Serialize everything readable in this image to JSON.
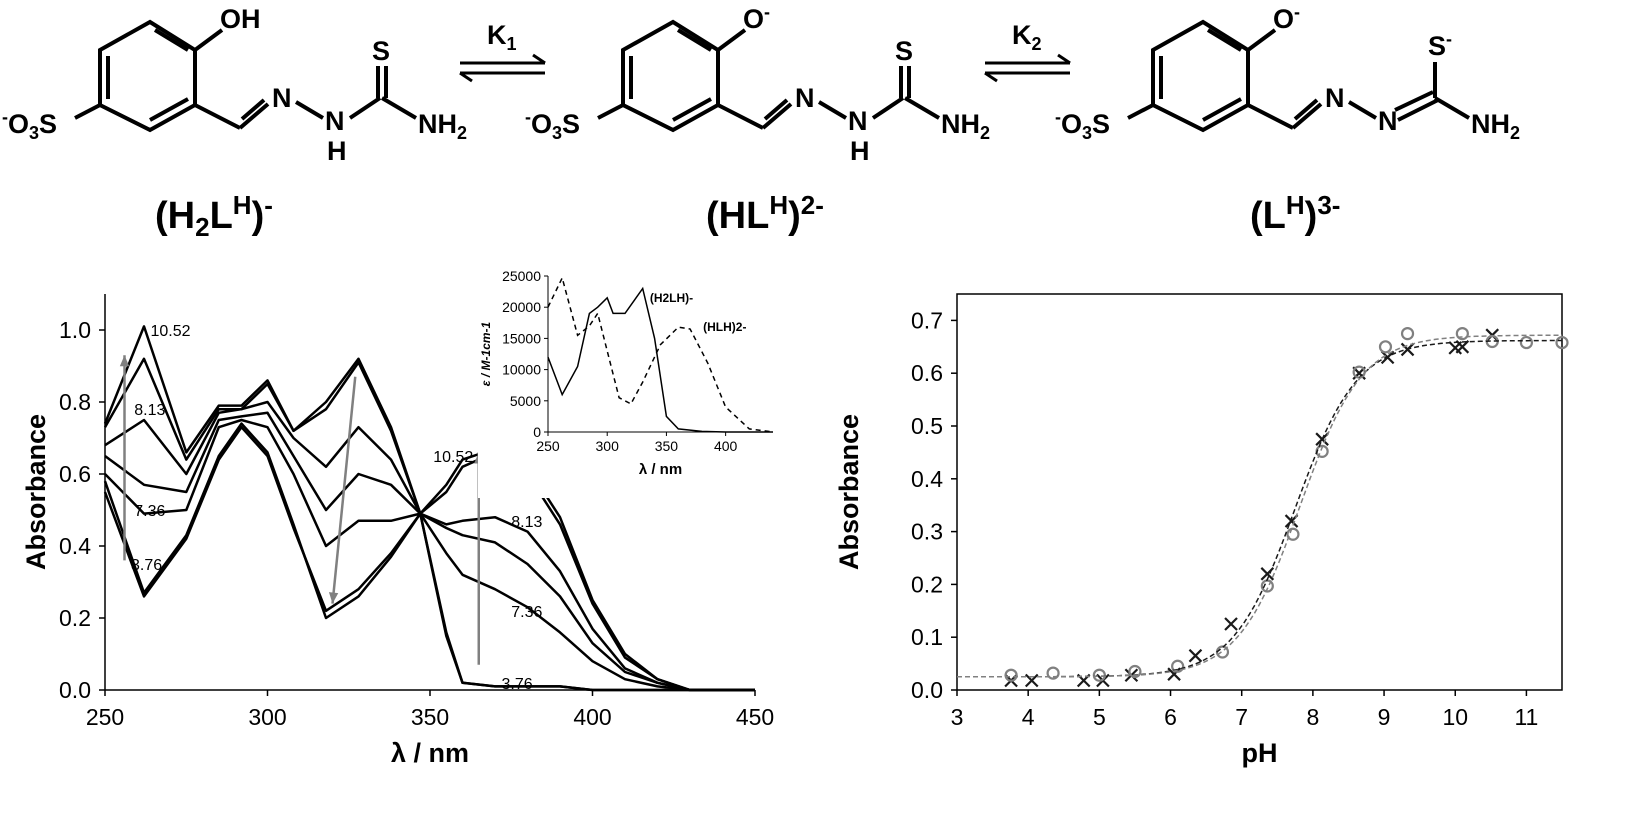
{
  "scheme": {
    "species": [
      {
        "label": "(H2L",
        "sup": "H",
        "close": ")",
        "charge": "-",
        "subscript": "2"
      },
      {
        "label": "(HL",
        "sup": "H",
        "close": ")",
        "charge": "2-"
      },
      {
        "label": "(L",
        "sup": "H",
        "close": ")",
        "charge": "3-"
      }
    ],
    "equilibria": [
      {
        "label": "K",
        "sub": "1"
      },
      {
        "label": "K",
        "sub": "2"
      }
    ],
    "atoms": {
      "oh": "OH",
      "o_minus": "O",
      "s": "S",
      "s_minus": "S",
      "n": "N",
      "nh": "N",
      "h": "H",
      "nh2": "NH",
      "nh2_sub": "2",
      "so3_pre": "-",
      "so3": "O",
      "so3_sub": "3",
      "so3_s": "S",
      "minus": "-"
    }
  },
  "chart_data": [
    {
      "id": "uv-vis-spectra",
      "type": "line",
      "xlabel": "λ / nm",
      "ylabel": "Absorbance",
      "xlim": [
        250,
        450
      ],
      "ylim": [
        0,
        1.1
      ],
      "xticks": [
        250,
        300,
        350,
        400,
        450
      ],
      "yticks": [
        "0.0",
        "0.2",
        "0.4",
        "0.6",
        "0.8",
        "1.0"
      ],
      "grid": false,
      "series": [
        {
          "name": "3.76",
          "x": [
            250,
            262,
            275,
            285,
            292,
            300,
            308,
            318,
            328,
            338,
            347,
            355,
            360,
            370,
            380,
            390,
            400,
            410,
            420,
            430,
            440,
            450
          ],
          "y": [
            0.55,
            0.26,
            0.42,
            0.64,
            0.73,
            0.65,
            0.45,
            0.22,
            0.28,
            0.38,
            0.49,
            0.15,
            0.02,
            0.01,
            0.01,
            0.01,
            0.0,
            0.0,
            0.0,
            0.0,
            0.0,
            0.0
          ]
        },
        {
          "name": "",
          "x": [
            250,
            262,
            275,
            285,
            292,
            300,
            308,
            318,
            328,
            338,
            347,
            355,
            360,
            370,
            380,
            390,
            400,
            410,
            420,
            430,
            440,
            450
          ],
          "y": [
            0.58,
            0.27,
            0.43,
            0.65,
            0.74,
            0.66,
            0.46,
            0.2,
            0.26,
            0.37,
            0.49,
            0.16,
            0.02,
            0.01,
            0.01,
            0.01,
            0.0,
            0.0,
            0.0,
            0.0,
            0.0,
            0.0
          ]
        },
        {
          "name": "7.36",
          "x": [
            250,
            262,
            275,
            285,
            292,
            300,
            308,
            318,
            328,
            338,
            347,
            355,
            360,
            370,
            380,
            390,
            400,
            410,
            420,
            430,
            440,
            450
          ],
          "y": [
            0.6,
            0.49,
            0.5,
            0.73,
            0.75,
            0.73,
            0.6,
            0.4,
            0.47,
            0.47,
            0.49,
            0.38,
            0.32,
            0.28,
            0.23,
            0.16,
            0.08,
            0.03,
            0.01,
            0.0,
            0.0,
            0.0
          ]
        },
        {
          "name": "",
          "x": [
            250,
            262,
            275,
            285,
            292,
            300,
            308,
            318,
            328,
            338,
            347,
            355,
            360,
            370,
            380,
            390,
            400,
            410,
            420,
            430,
            440,
            450
          ],
          "y": [
            0.65,
            0.57,
            0.55,
            0.75,
            0.76,
            0.77,
            0.65,
            0.5,
            0.6,
            0.57,
            0.49,
            0.45,
            0.43,
            0.41,
            0.35,
            0.26,
            0.13,
            0.05,
            0.02,
            0.0,
            0.0,
            0.0
          ]
        },
        {
          "name": "8.13",
          "x": [
            250,
            262,
            275,
            285,
            292,
            300,
            308,
            318,
            328,
            338,
            347,
            355,
            360,
            370,
            380,
            390,
            400,
            410,
            420,
            430,
            440,
            450
          ],
          "y": [
            0.68,
            0.75,
            0.6,
            0.77,
            0.78,
            0.8,
            0.7,
            0.62,
            0.73,
            0.64,
            0.49,
            0.46,
            0.47,
            0.48,
            0.44,
            0.33,
            0.17,
            0.06,
            0.02,
            0.0,
            0.0,
            0.0
          ]
        },
        {
          "name": "",
          "x": [
            250,
            262,
            275,
            285,
            292,
            300,
            308,
            318,
            328,
            338,
            347,
            355,
            360,
            370,
            380,
            390,
            400,
            410,
            420,
            430,
            440,
            450
          ],
          "y": [
            0.73,
            0.92,
            0.64,
            0.78,
            0.78,
            0.85,
            0.72,
            0.78,
            0.91,
            0.72,
            0.49,
            0.55,
            0.62,
            0.66,
            0.6,
            0.46,
            0.24,
            0.09,
            0.03,
            0.0,
            0.0,
            0.0
          ]
        },
        {
          "name": "10.52",
          "x": [
            250,
            262,
            275,
            285,
            292,
            300,
            308,
            318,
            328,
            338,
            347,
            355,
            360,
            370,
            380,
            390,
            400,
            410,
            420,
            430,
            440,
            450
          ],
          "y": [
            0.74,
            1.01,
            0.66,
            0.79,
            0.79,
            0.86,
            0.72,
            0.8,
            0.92,
            0.73,
            0.49,
            0.57,
            0.64,
            0.67,
            0.62,
            0.48,
            0.25,
            0.1,
            0.03,
            0.0,
            0.0,
            0.0
          ]
        }
      ],
      "annotations": [
        {
          "text": "10.52",
          "x": 264,
          "y": 1.0
        },
        {
          "text": "8.13",
          "x": 259,
          "y": 0.78
        },
        {
          "text": "7.36",
          "x": 259,
          "y": 0.5
        },
        {
          "text": "3.76",
          "x": 258,
          "y": 0.35
        },
        {
          "text": "10.52",
          "x": 351,
          "y": 0.65
        },
        {
          "text": "8.13",
          "x": 375,
          "y": 0.47
        },
        {
          "text": "7.36",
          "x": 375,
          "y": 0.22
        },
        {
          "text": "3.76",
          "x": 372,
          "y": 0.02
        }
      ],
      "arrows": [
        {
          "from": [
            256,
            0.36
          ],
          "to": [
            256,
            0.93
          ],
          "color": "#808080"
        },
        {
          "from": [
            327,
            0.87
          ],
          "to": [
            320,
            0.24
          ],
          "color": "#808080"
        },
        {
          "from": [
            365,
            0.07
          ],
          "to": [
            365,
            0.66
          ],
          "color": "#808080"
        }
      ],
      "inset": {
        "type": "line",
        "xlabel": "λ / nm",
        "ylabel": "ε / M-1cm-1",
        "xlim": [
          250,
          440
        ],
        "ylim": [
          0,
          25000
        ],
        "xticks": [
          250,
          300,
          350,
          400
        ],
        "yticks": [
          0,
          5000,
          10000,
          15000,
          20000,
          25000
        ],
        "series": [
          {
            "name": "(H2LH)-",
            "style": "solid",
            "x": [
              250,
              262,
              275,
              285,
              292,
              300,
              305,
              315,
              330,
              340,
              350,
              360,
              380,
              400,
              420,
              440
            ],
            "y": [
              12000,
              6000,
              10500,
              19000,
              20000,
              21500,
              19000,
              19000,
              23000,
              15000,
              2500,
              500,
              100,
              0,
              0,
              0
            ]
          },
          {
            "name": "(HLH)2-",
            "style": "dashed",
            "x": [
              250,
              262,
              275,
              285,
              292,
              300,
              310,
              320,
              330,
              345,
              360,
              370,
              385,
              400,
              420,
              440
            ],
            "y": [
              20000,
              24700,
              15500,
              17000,
              19000,
              13000,
              5500,
              4500,
              8000,
              14000,
              16800,
              16500,
              11000,
              4000,
              500,
              0
            ]
          }
        ],
        "labels": [
          {
            "text": "(H2LH)-",
            "x": 336,
            "y": 20800
          },
          {
            "text": "(HLH)2-",
            "x": 381,
            "y": 16200
          }
        ]
      }
    },
    {
      "id": "titration-curve",
      "type": "scatter",
      "xlabel": "pH",
      "ylabel": "Absorbance",
      "xlim": [
        3,
        11.5
      ],
      "ylim": [
        0,
        0.75
      ],
      "xticks": [
        3,
        4,
        5,
        6,
        7,
        8,
        9,
        10,
        11
      ],
      "yticks": [
        "0.0",
        "0.1",
        "0.2",
        "0.3",
        "0.4",
        "0.5",
        "0.6",
        "0.7"
      ],
      "grid": false,
      "series": [
        {
          "name": "",
          "marker": "x",
          "color": "#1a1a1a",
          "x": [
            3.76,
            4.05,
            4.78,
            5.05,
            5.45,
            6.05,
            6.35,
            6.85,
            7.36,
            7.7,
            8.13,
            8.65,
            9.05,
            9.33,
            10.0,
            10.1,
            10.52
          ],
          "y": [
            0.018,
            0.018,
            0.018,
            0.018,
            0.028,
            0.03,
            0.065,
            0.125,
            0.22,
            0.32,
            0.475,
            0.6,
            0.63,
            0.645,
            0.648,
            0.65,
            0.672
          ]
        },
        {
          "name": "",
          "marker": "o",
          "color": "#808080",
          "x": [
            3.76,
            4.35,
            5.0,
            5.5,
            6.1,
            6.73,
            7.36,
            7.72,
            8.13,
            8.65,
            9.02,
            9.33,
            10.1,
            10.52,
            11.0,
            11.5
          ],
          "y": [
            0.028,
            0.032,
            0.028,
            0.035,
            0.045,
            0.072,
            0.197,
            0.295,
            0.452,
            0.602,
            0.65,
            0.675,
            0.675,
            0.66,
            0.658,
            0.658
          ]
        },
        {
          "name": "",
          "type": "line",
          "style": "dashed",
          "color": "#1a1a1a",
          "pKa": 7.75,
          "low": 0.025,
          "high": 0.662
        },
        {
          "name": "",
          "type": "line",
          "style": "dashed",
          "color": "#808080",
          "pKa": 7.82,
          "low": 0.025,
          "high": 0.672
        }
      ]
    }
  ]
}
